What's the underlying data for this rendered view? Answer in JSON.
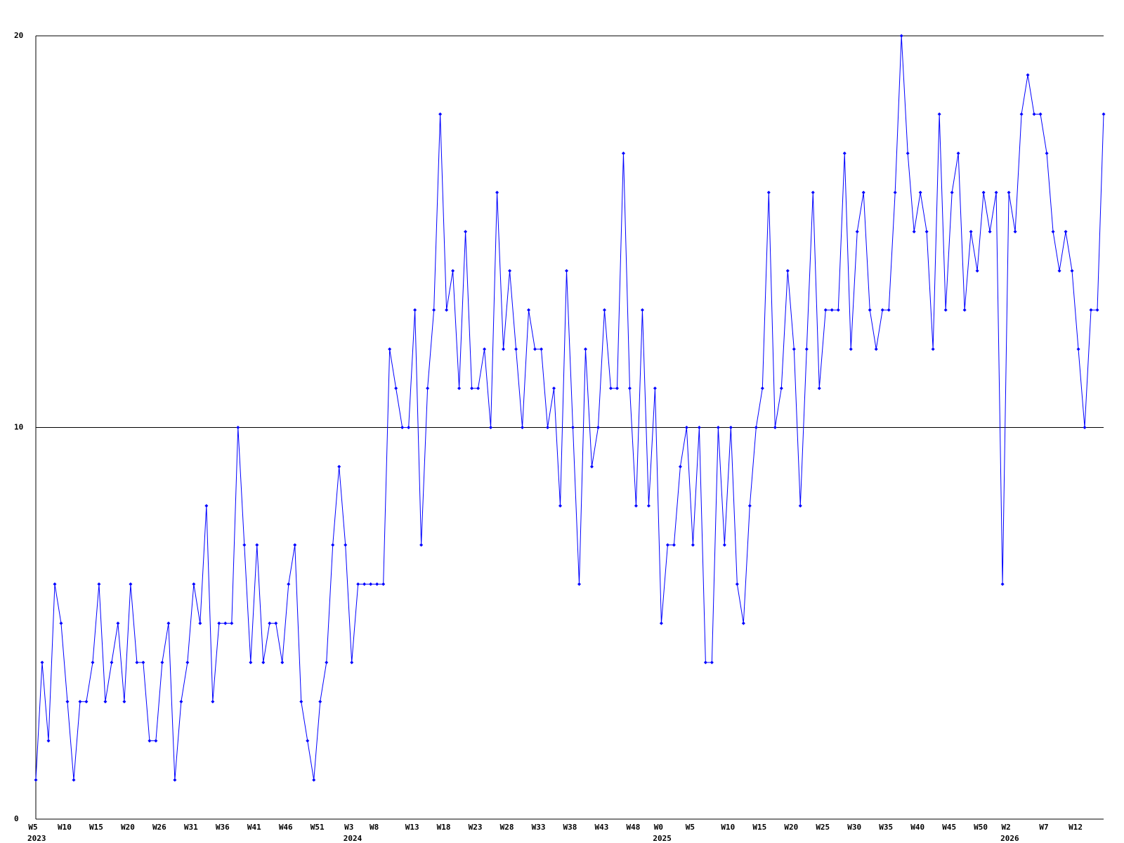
{
  "chart_data": {
    "type": "line",
    "categories": [
      "W5",
      null,
      null,
      null,
      null,
      "W10",
      null,
      null,
      null,
      null,
      "W15",
      null,
      null,
      null,
      null,
      "W20",
      null,
      null,
      null,
      null,
      "W26",
      null,
      null,
      null,
      null,
      "W31",
      null,
      null,
      null,
      null,
      "W36",
      null,
      null,
      null,
      null,
      "W41",
      null,
      null,
      null,
      null,
      "W46",
      null,
      null,
      null,
      null,
      "W51",
      null,
      null,
      null,
      null,
      "W3",
      null,
      null,
      null,
      "W8",
      null,
      null,
      null,
      null,
      null,
      "W13",
      null,
      null,
      null,
      null,
      "W18",
      null,
      null,
      null,
      null,
      "W23",
      null,
      null,
      null,
      null,
      "W28",
      null,
      null,
      null,
      null,
      "W33",
      null,
      null,
      null,
      null,
      "W38",
      null,
      null,
      null,
      null,
      "W43",
      null,
      null,
      null,
      null,
      "W48",
      null,
      null,
      null,
      "W0",
      null,
      null,
      null,
      null,
      "W5",
      null,
      null,
      null,
      null,
      null,
      "W10",
      null,
      null,
      null,
      null,
      "W15",
      null,
      null,
      null,
      null,
      "W20",
      null,
      null,
      null,
      null,
      "W25",
      null,
      null,
      null,
      null,
      "W30",
      null,
      null,
      null,
      null,
      "W35",
      null,
      null,
      null,
      null,
      "W40",
      null,
      null,
      null,
      null,
      "W45",
      null,
      null,
      null,
      null,
      "W50",
      null,
      null,
      null,
      "W2",
      null,
      null,
      null,
      null,
      null,
      "W7",
      null,
      null,
      null,
      null,
      "W12",
      null,
      null,
      null,
      null
    ],
    "years": [
      "2023",
      null,
      null,
      null,
      null,
      null,
      null,
      null,
      null,
      null,
      null,
      null,
      null,
      null,
      null,
      null,
      null,
      null,
      null,
      null,
      null,
      null,
      null,
      null,
      null,
      null,
      null,
      null,
      null,
      null,
      null,
      null,
      null,
      null,
      null,
      null,
      null,
      null,
      null,
      null,
      null,
      null,
      null,
      null,
      null,
      null,
      null,
      null,
      null,
      null,
      "2024",
      null,
      null,
      null,
      null,
      null,
      null,
      null,
      null,
      null,
      null,
      null,
      null,
      null,
      null,
      null,
      null,
      null,
      null,
      null,
      null,
      null,
      null,
      null,
      null,
      null,
      null,
      null,
      null,
      null,
      null,
      null,
      null,
      null,
      null,
      null,
      null,
      null,
      null,
      null,
      null,
      null,
      null,
      null,
      null,
      null,
      null,
      null,
      null,
      "2025",
      null,
      null,
      null,
      null,
      null,
      null,
      null,
      null,
      null,
      null,
      null,
      null,
      null,
      null,
      null,
      null,
      null,
      null,
      null,
      null,
      null,
      null,
      null,
      null,
      null,
      null,
      null,
      null,
      null,
      null,
      null,
      null,
      null,
      null,
      null,
      null,
      null,
      null,
      null,
      null,
      null,
      null,
      null,
      null,
      null,
      null,
      null,
      null,
      null,
      null,
      null,
      null,
      null,
      null,
      "2026",
      null,
      null,
      null,
      null,
      null,
      null,
      null,
      null,
      null,
      null,
      null,
      null,
      null,
      null,
      null
    ],
    "values": [
      1,
      4,
      2,
      6,
      5,
      3,
      1,
      3,
      3,
      4,
      6,
      3,
      4,
      5,
      3,
      6,
      4,
      4,
      2,
      2,
      4,
      5,
      1,
      3,
      4,
      6,
      5,
      8,
      3,
      5,
      5,
      5,
      10,
      7,
      4,
      7,
      4,
      5,
      5,
      4,
      6,
      7,
      3,
      2,
      1,
      3,
      4,
      7,
      9,
      7,
      4,
      6,
      6,
      6,
      6,
      6,
      12,
      11,
      10,
      10,
      13,
      7,
      11,
      13,
      18,
      13,
      14,
      11,
      15,
      11,
      11,
      12,
      10,
      16,
      12,
      14,
      12,
      10,
      13,
      12,
      12,
      10,
      11,
      8,
      14,
      10,
      6,
      12,
      9,
      10,
      13,
      11,
      11,
      17,
      11,
      8,
      13,
      8,
      11,
      5,
      7,
      7,
      9,
      10,
      7,
      10,
      4,
      4,
      10,
      7,
      10,
      6,
      5,
      8,
      10,
      11,
      16,
      10,
      11,
      14,
      12,
      8,
      12,
      16,
      11,
      13,
      13,
      13,
      17,
      12,
      15,
      16,
      13,
      12,
      13,
      13,
      16,
      20,
      17,
      15,
      16,
      15,
      12,
      18,
      13,
      16,
      17,
      13,
      15,
      14,
      16,
      15,
      16,
      6,
      16,
      15,
      18,
      19,
      18,
      18,
      17,
      15,
      14,
      15,
      14,
      12,
      10,
      13,
      13,
      18
    ],
    "color": "#0000ff",
    "ylim": [
      0,
      20
    ],
    "yticks": [
      0,
      10,
      20
    ],
    "grid": true
  }
}
